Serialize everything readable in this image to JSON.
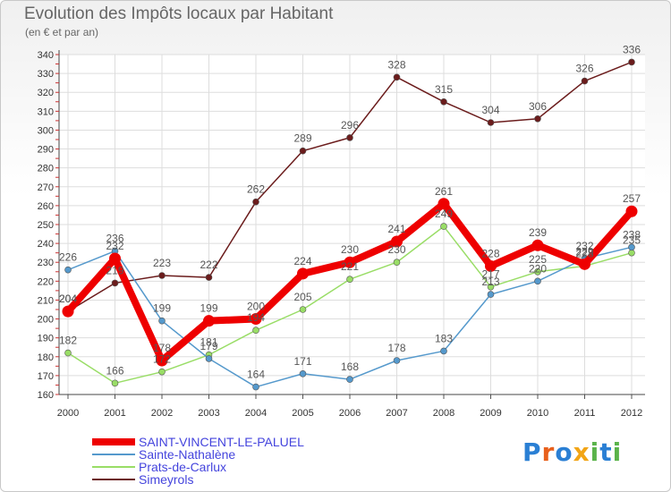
{
  "header": {
    "title": "Evolution des Impôts locaux par Habitant",
    "subtitle": "(en € et par an)"
  },
  "logo": {
    "text": "Proxiti",
    "letters": [
      "P",
      "r",
      "o",
      "x",
      "i",
      "t",
      "i"
    ],
    "colors": [
      "#2a7fd4",
      "#e8601c",
      "#2a7fd4",
      "#f2a516",
      "#5ab34a",
      "#2a7fd4",
      "#5ab34a"
    ]
  },
  "chart_data": {
    "type": "line",
    "title": "Evolution des Impôts locaux par Habitant",
    "subtitle": "(en € et par an)",
    "xlabel": "",
    "ylabel": "",
    "x": [
      "2000",
      "2001",
      "2002",
      "2003",
      "2004",
      "2005",
      "2006",
      "2007",
      "2008",
      "2009",
      "2010",
      "2011",
      "2012"
    ],
    "ylim": [
      160,
      340
    ],
    "yticks": [
      160,
      170,
      180,
      190,
      200,
      210,
      220,
      230,
      240,
      250,
      260,
      270,
      280,
      290,
      300,
      310,
      320,
      330,
      340
    ],
    "grid": true,
    "legend_position": "bottom-left",
    "series": [
      {
        "name": "Simeyrols",
        "color": "#6b1c1c",
        "values": [
          204,
          219,
          223,
          222,
          262,
          289,
          296,
          328,
          315,
          304,
          306,
          326,
          336
        ]
      },
      {
        "name": "Prats-de-Carlux",
        "color": "#99dd66",
        "values": [
          182,
          166,
          172,
          181,
          194,
          205,
          221,
          230,
          249,
          217,
          225,
          228,
          235
        ]
      },
      {
        "name": "Sainte-Nathalène",
        "color": "#5599cc",
        "values": [
          226,
          236,
          199,
          179,
          164,
          171,
          168,
          178,
          183,
          213,
          220,
          232,
          238
        ]
      },
      {
        "name": "SAINT-VINCENT-LE-PALUEL",
        "color": "#ee0000",
        "values": [
          204,
          232,
          178,
          199,
          200,
          224,
          230,
          241,
          261,
          228,
          239,
          229,
          257
        ]
      }
    ]
  }
}
